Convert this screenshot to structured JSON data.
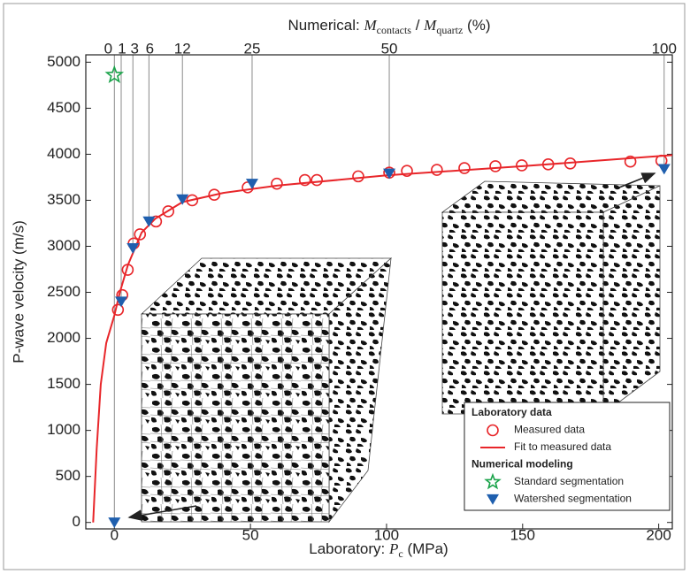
{
  "chart_data": {
    "type": "scatter",
    "y_label": "P-wave velocity (m/s)",
    "x_label": {
      "prefix": "Laboratory: ",
      "symbol": "P",
      "sub": "c",
      "suffix": " (MPa)"
    },
    "top_label": {
      "prefix": "Numerical: ",
      "sym1": "M",
      "sub1": "contacts",
      "mid": " / ",
      "sym2": "M",
      "sub2": "quartz",
      "suffix": " (%)"
    },
    "top_ticks": [
      0,
      1,
      3,
      6,
      12,
      25,
      50,
      100
    ],
    "xlim": [
      -10.5,
      205
    ],
    "xticks": [
      0,
      50,
      100,
      150,
      200
    ],
    "ylim": [
      -70,
      5080
    ],
    "yticks": [
      0,
      500,
      1000,
      1500,
      2000,
      2500,
      3000,
      3500,
      4000,
      4500,
      5000
    ],
    "legend_groups": [
      "Laboratory data",
      "Numerical modeling"
    ],
    "legend": "lower right",
    "series": [
      {
        "name": "Measured data",
        "marker": "circle",
        "color": "#e8262a",
        "x": [
          1.3,
          2.9,
          4.9,
          7.1,
          9.4,
          15.3,
          19.8,
          28.6,
          36.7,
          49,
          59.7,
          70,
          74.4,
          89.6,
          101,
          107.5,
          118.5,
          128.6,
          140,
          149.7,
          159.4,
          167.5,
          189.6,
          201
        ],
        "values": [
          2310,
          2470,
          2745,
          3030,
          3130,
          3270,
          3380,
          3500,
          3560,
          3640,
          3680,
          3720,
          3720,
          3760,
          3800,
          3820,
          3830,
          3850,
          3870,
          3880,
          3890,
          3900,
          3920,
          3930
        ]
      },
      {
        "name": "Fit to measured data",
        "marker": "line",
        "color": "#e8262a",
        "x": [
          -7.8,
          -6.5,
          -5,
          -3,
          0,
          2,
          5,
          10,
          15,
          25,
          40,
          60,
          100,
          150,
          205
        ],
        "values": [
          0,
          800,
          1500,
          1950,
          2250,
          2500,
          2800,
          3150,
          3300,
          3480,
          3580,
          3660,
          3770,
          3870,
          3990
        ]
      },
      {
        "name": "Standard segmentation",
        "marker": "star",
        "color": "#1aa34a",
        "x": [
          0
        ],
        "values": [
          4860
        ]
      },
      {
        "name": "Watershed segmentation",
        "marker": "triangle",
        "color": "#1f5fae",
        "x": [
          0,
          2.5,
          6.8,
          12.7,
          25,
          50.6,
          101,
          202
        ],
        "values": [
          0,
          2400,
          2980,
          3270,
          3510,
          3680,
          3790,
          3840
        ]
      }
    ]
  }
}
